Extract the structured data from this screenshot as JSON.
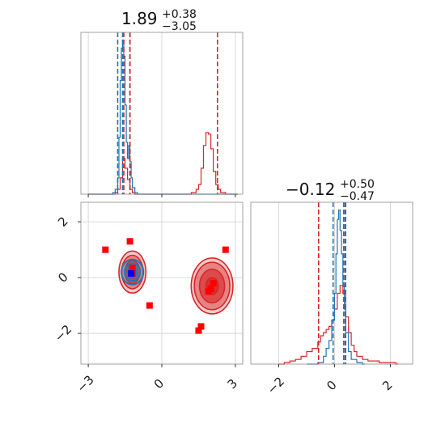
{
  "chart_data": [
    {
      "panel": "top-left",
      "type": "histogram",
      "title": {
        "value": "1.89",
        "plus": "+0.38",
        "minus": "−3.05"
      },
      "xlim": [
        -3.3,
        3.3
      ],
      "grid": true,
      "xticks": [
        -3,
        0,
        3
      ],
      "series": [
        {
          "color": "#d62728",
          "x": [
            -3.0,
            -2.8,
            -2.6,
            -2.4,
            -2.2,
            -2.0,
            -1.9,
            -1.8,
            -1.7,
            -1.6,
            -1.5,
            -1.4,
            -1.3,
            -1.2,
            -1.1,
            -1.0,
            -0.9,
            -0.8,
            -0.6,
            -0.4,
            -0.2,
            0.0,
            0.2,
            0.4,
            0.6,
            0.8,
            1.0,
            1.2,
            1.4,
            1.5,
            1.6,
            1.7,
            1.8,
            1.9,
            2.0,
            2.1,
            2.2,
            2.3,
            2.4,
            2.6,
            2.8,
            3.0
          ],
          "values": [
            0,
            0,
            0,
            0,
            0,
            0,
            0.01,
            0.03,
            0.1,
            0.22,
            0.16,
            0.09,
            0.03,
            0.01,
            0,
            0,
            0,
            0,
            0,
            0,
            0,
            0,
            0,
            0,
            0,
            0,
            0,
            0.01,
            0.03,
            0.06,
            0.16,
            0.3,
            0.38,
            0.37,
            0.28,
            0.14,
            0.06,
            0.03,
            0.01,
            0,
            0,
            0
          ]
        },
        {
          "color": "#1f77b4",
          "x": [
            -3.0,
            -2.8,
            -2.6,
            -2.4,
            -2.2,
            -2.0,
            -1.9,
            -1.8,
            -1.75,
            -1.7,
            -1.65,
            -1.6,
            -1.55,
            -1.5,
            -1.45,
            -1.4,
            -1.35,
            -1.3,
            -1.25,
            -1.2,
            -1.1,
            -1.0,
            -0.8,
            0.0,
            1.0,
            2.0,
            3.0
          ],
          "values": [
            0,
            0,
            0,
            0,
            0,
            0.01,
            0.03,
            0.1,
            0.35,
            0.7,
            0.9,
            0.95,
            0.85,
            0.55,
            0.32,
            0.22,
            0.3,
            0.2,
            0.1,
            0.04,
            0.01,
            0,
            0,
            0,
            0,
            0,
            0
          ]
        }
      ],
      "vlines": [
        {
          "color": "#1f77b4",
          "x": -1.8
        },
        {
          "color": "#1f77b4",
          "x": -1.6
        },
        {
          "color": "#1f77b4",
          "x": -1.3
        },
        {
          "color": "#d62728",
          "x": -1.55
        },
        {
          "color": "#d62728",
          "x": -1.3
        },
        {
          "color": "#d62728",
          "x": 2.27
        }
      ]
    },
    {
      "panel": "bottom-right",
      "type": "histogram",
      "title": {
        "value": "−0.12",
        "plus": "+0.50",
        "minus": "−0.47"
      },
      "xlim": [
        -3.0,
        2.8
      ],
      "grid": true,
      "xticks": [
        -2,
        0,
        2
      ],
      "series": [
        {
          "color": "#d62728",
          "x": [
            -2.0,
            -1.8,
            -1.6,
            -1.4,
            -1.2,
            -1.0,
            -0.8,
            -0.6,
            -0.5,
            -0.4,
            -0.3,
            -0.2,
            -0.1,
            0.0,
            0.1,
            0.2,
            0.3,
            0.4,
            0.5,
            0.6,
            0.7,
            0.8,
            1.0,
            1.2,
            1.4,
            1.6,
            1.8,
            2.0,
            2.2
          ],
          "values": [
            0,
            0.01,
            0.02,
            0.03,
            0.05,
            0.08,
            0.1,
            0.14,
            0.18,
            0.2,
            0.22,
            0.24,
            0.28,
            0.35,
            0.45,
            0.5,
            0.45,
            0.3,
            0.2,
            0.12,
            0.08,
            0.05,
            0.03,
            0.02,
            0.02,
            0.01,
            0.01,
            0.01,
            0
          ]
        },
        {
          "color": "#1f77b4",
          "x": [
            -1.0,
            -0.6,
            -0.4,
            -0.3,
            -0.2,
            -0.1,
            0.0,
            0.05,
            0.1,
            0.15,
            0.2,
            0.25,
            0.3,
            0.35,
            0.4,
            0.5,
            0.6,
            0.8,
            1.0
          ],
          "values": [
            0,
            0.01,
            0.05,
            0.1,
            0.15,
            0.28,
            0.45,
            0.7,
            0.92,
            0.98,
            0.85,
            0.7,
            0.5,
            0.35,
            0.2,
            0.08,
            0.03,
            0.01,
            0
          ]
        }
      ],
      "vlines": [
        {
          "color": "#d62728",
          "x": -0.57
        },
        {
          "color": "#d62728",
          "x": 0.38
        },
        {
          "color": "#1f77b4",
          "x": -0.05
        },
        {
          "color": "#1f77b4",
          "x": 0.33
        },
        {
          "color": "#1f77b4",
          "x": 0.4
        }
      ]
    },
    {
      "panel": "bottom-left",
      "type": "scatter",
      "xlim": [
        -3.3,
        3.3
      ],
      "ylim": [
        -3.1,
        2.7
      ],
      "grid": true,
      "xticks": [
        -3,
        0,
        3
      ],
      "yticks": [
        -2,
        0,
        2
      ],
      "red_markers": [
        [
          -2.3,
          1.0
        ],
        [
          -1.3,
          1.3
        ],
        [
          -1.2,
          0.35
        ],
        [
          -1.2,
          0.15
        ],
        [
          -0.5,
          -1.0
        ],
        [
          2.6,
          1.0
        ],
        [
          2.1,
          -0.2
        ],
        [
          2.0,
          -0.4
        ],
        [
          1.9,
          -0.5
        ],
        [
          1.6,
          -1.75
        ],
        [
          1.5,
          -1.9
        ]
      ],
      "blue_markers": [
        [
          -1.25,
          0.15
        ]
      ],
      "contours": [
        {
          "color": "#d62728",
          "cx": -1.2,
          "cy": 0.2,
          "rx": 0.55,
          "ry": 0.75,
          "levels": [
            1.0,
            0.8,
            0.55,
            0.3
          ]
        },
        {
          "color": "#d62728",
          "cx": 2.05,
          "cy": -0.3,
          "rx": 0.85,
          "ry": 1.0,
          "levels": [
            1.0,
            0.85,
            0.6,
            0.3
          ]
        },
        {
          "color": "#1f77b4",
          "cx": -1.2,
          "cy": 0.2,
          "rx": 0.45,
          "ry": 0.45,
          "levels": [
            1.0,
            0.7,
            0.4
          ]
        }
      ]
    }
  ]
}
